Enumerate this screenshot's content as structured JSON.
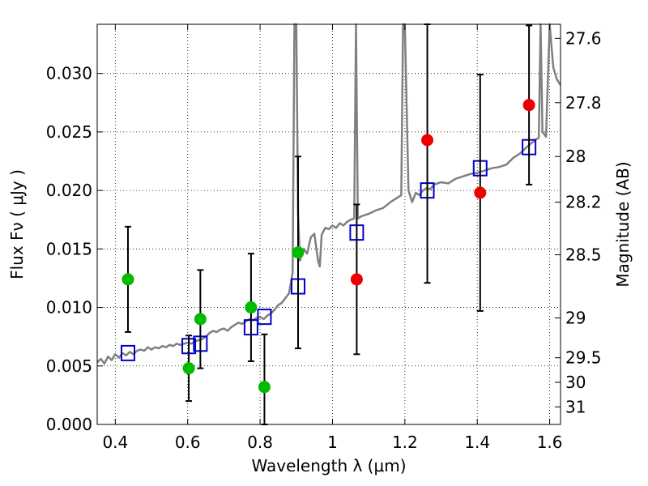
{
  "chart_data": {
    "type": "scatter",
    "xlabel": "Wavelength  λ (μm)",
    "ylabel": "Flux  Fν  ( μJy )",
    "y2label": "Magnitude (AB)",
    "xlim": [
      0.35,
      1.63
    ],
    "ylim": [
      0.0,
      0.0342
    ],
    "grid": true,
    "x_ticks": [
      0.4,
      0.6,
      0.8,
      1.0,
      1.2,
      1.4,
      1.6
    ],
    "x_tick_labels": [
      "0.4",
      "0.6",
      "0.8",
      "1",
      "1.2",
      "1.4",
      "1.6"
    ],
    "y_ticks": [
      0.0,
      0.005,
      0.01,
      0.015,
      0.02,
      0.025,
      0.03
    ],
    "y_tick_labels": [
      "0.000",
      "0.005",
      "0.010",
      "0.015",
      "0.020",
      "0.025",
      "0.030"
    ],
    "y2_ticks": [
      {
        "label": "27.6",
        "flux": 0.033
      },
      {
        "label": "27.8",
        "flux": 0.0275
      },
      {
        "label": "28",
        "flux": 0.0229
      },
      {
        "label": "28.2",
        "flux": 0.019
      },
      {
        "label": "28.5",
        "flux": 0.0145
      },
      {
        "label": "29",
        "flux": 0.0091
      },
      {
        "label": "29.5",
        "flux": 0.0057
      },
      {
        "label": "30",
        "flux": 0.0036
      },
      {
        "label": "31",
        "flux": 0.0015
      }
    ],
    "colors": {
      "model": "#808080",
      "model_photometry": "#0000cc",
      "detected": "#00bb00",
      "undetected": "#ee0000",
      "errorbar": "#000000"
    },
    "series": [
      {
        "kind": "line",
        "x": [
          0.35,
          0.36,
          0.37,
          0.38,
          0.39,
          0.4,
          0.41,
          0.42,
          0.43,
          0.44,
          0.45,
          0.46,
          0.47,
          0.48,
          0.49,
          0.5,
          0.51,
          0.52,
          0.53,
          0.54,
          0.55,
          0.56,
          0.57,
          0.58,
          0.59,
          0.6,
          0.61,
          0.62,
          0.63,
          0.64,
          0.65,
          0.66,
          0.67,
          0.68,
          0.69,
          0.7,
          0.71,
          0.72,
          0.73,
          0.74,
          0.75,
          0.76,
          0.77,
          0.78,
          0.79,
          0.8,
          0.81,
          0.82,
          0.83,
          0.84,
          0.85,
          0.86,
          0.87,
          0.88,
          0.89,
          0.895,
          0.9,
          0.905,
          0.91,
          0.92,
          0.93,
          0.94,
          0.95,
          0.96,
          0.965,
          0.97,
          0.98,
          0.99,
          1.0,
          1.01,
          1.02,
          1.03,
          1.04,
          1.05,
          1.06,
          1.065,
          1.07,
          1.08,
          1.1,
          1.12,
          1.14,
          1.16,
          1.18,
          1.19,
          1.195,
          1.2,
          1.21,
          1.22,
          1.23,
          1.24,
          1.25,
          1.26,
          1.27,
          1.28,
          1.3,
          1.32,
          1.34,
          1.36,
          1.38,
          1.4,
          1.42,
          1.44,
          1.46,
          1.48,
          1.5,
          1.52,
          1.54,
          1.56,
          1.57,
          1.575,
          1.58,
          1.59,
          1.6,
          1.61,
          1.62,
          1.63
        ],
        "y": [
          0.0053,
          0.0056,
          0.0052,
          0.0058,
          0.0055,
          0.006,
          0.0057,
          0.0061,
          0.0059,
          0.0062,
          0.006,
          0.0063,
          0.0064,
          0.0063,
          0.0066,
          0.0064,
          0.0066,
          0.0065,
          0.0067,
          0.0066,
          0.0068,
          0.0067,
          0.0069,
          0.0068,
          0.0069,
          0.007,
          0.0069,
          0.0071,
          0.0072,
          0.0073,
          0.0075,
          0.0078,
          0.008,
          0.0079,
          0.0081,
          0.0082,
          0.008,
          0.0083,
          0.0085,
          0.0087,
          0.0086,
          0.0088,
          0.009,
          0.0089,
          0.0091,
          0.0092,
          0.009,
          0.0093,
          0.0095,
          0.0098,
          0.0102,
          0.0104,
          0.0108,
          0.0112,
          0.013,
          0.0342,
          0.0342,
          0.018,
          0.014,
          0.015,
          0.0146,
          0.016,
          0.0163,
          0.014,
          0.0135,
          0.0162,
          0.0168,
          0.0167,
          0.017,
          0.0168,
          0.0172,
          0.017,
          0.0173,
          0.0175,
          0.0176,
          0.0342,
          0.0176,
          0.0178,
          0.018,
          0.0183,
          0.0185,
          0.019,
          0.0194,
          0.0196,
          0.0342,
          0.0342,
          0.02,
          0.019,
          0.0198,
          0.0196,
          0.02,
          0.0202,
          0.0201,
          0.0205,
          0.0207,
          0.0206,
          0.021,
          0.0212,
          0.0214,
          0.0215,
          0.0217,
          0.0219,
          0.022,
          0.0222,
          0.0228,
          0.0232,
          0.0238,
          0.0243,
          0.0245,
          0.0342,
          0.025,
          0.0246,
          0.0342,
          0.0305,
          0.0295,
          0.029
        ]
      },
      {
        "kind": "scatter",
        "marker": "square",
        "x": [
          0.435,
          0.603,
          0.635,
          0.775,
          0.812,
          0.905,
          1.067,
          1.262,
          1.408,
          1.543
        ],
        "y": [
          0.0061,
          0.0067,
          0.0069,
          0.0083,
          0.0092,
          0.0118,
          0.0164,
          0.02,
          0.0219,
          0.0237
        ]
      },
      {
        "kind": "scatter",
        "marker": "circle",
        "x": [
          0.435,
          0.603,
          0.635,
          0.775,
          0.812,
          0.905
        ],
        "y": [
          0.0124,
          0.0048,
          0.009,
          0.01,
          0.0032,
          0.0147
        ],
        "yerr": [
          0.0045,
          0.0028,
          0.0042,
          0.0046,
          0.0045,
          0.0082
        ]
      },
      {
        "kind": "scatter",
        "marker": "circle",
        "x": [
          1.067,
          1.262,
          1.408,
          1.543
        ],
        "y": [
          0.0124,
          0.0243,
          0.0198,
          0.0273
        ],
        "yerr": [
          0.0064,
          0.0122,
          0.0101,
          0.0068
        ]
      }
    ]
  }
}
